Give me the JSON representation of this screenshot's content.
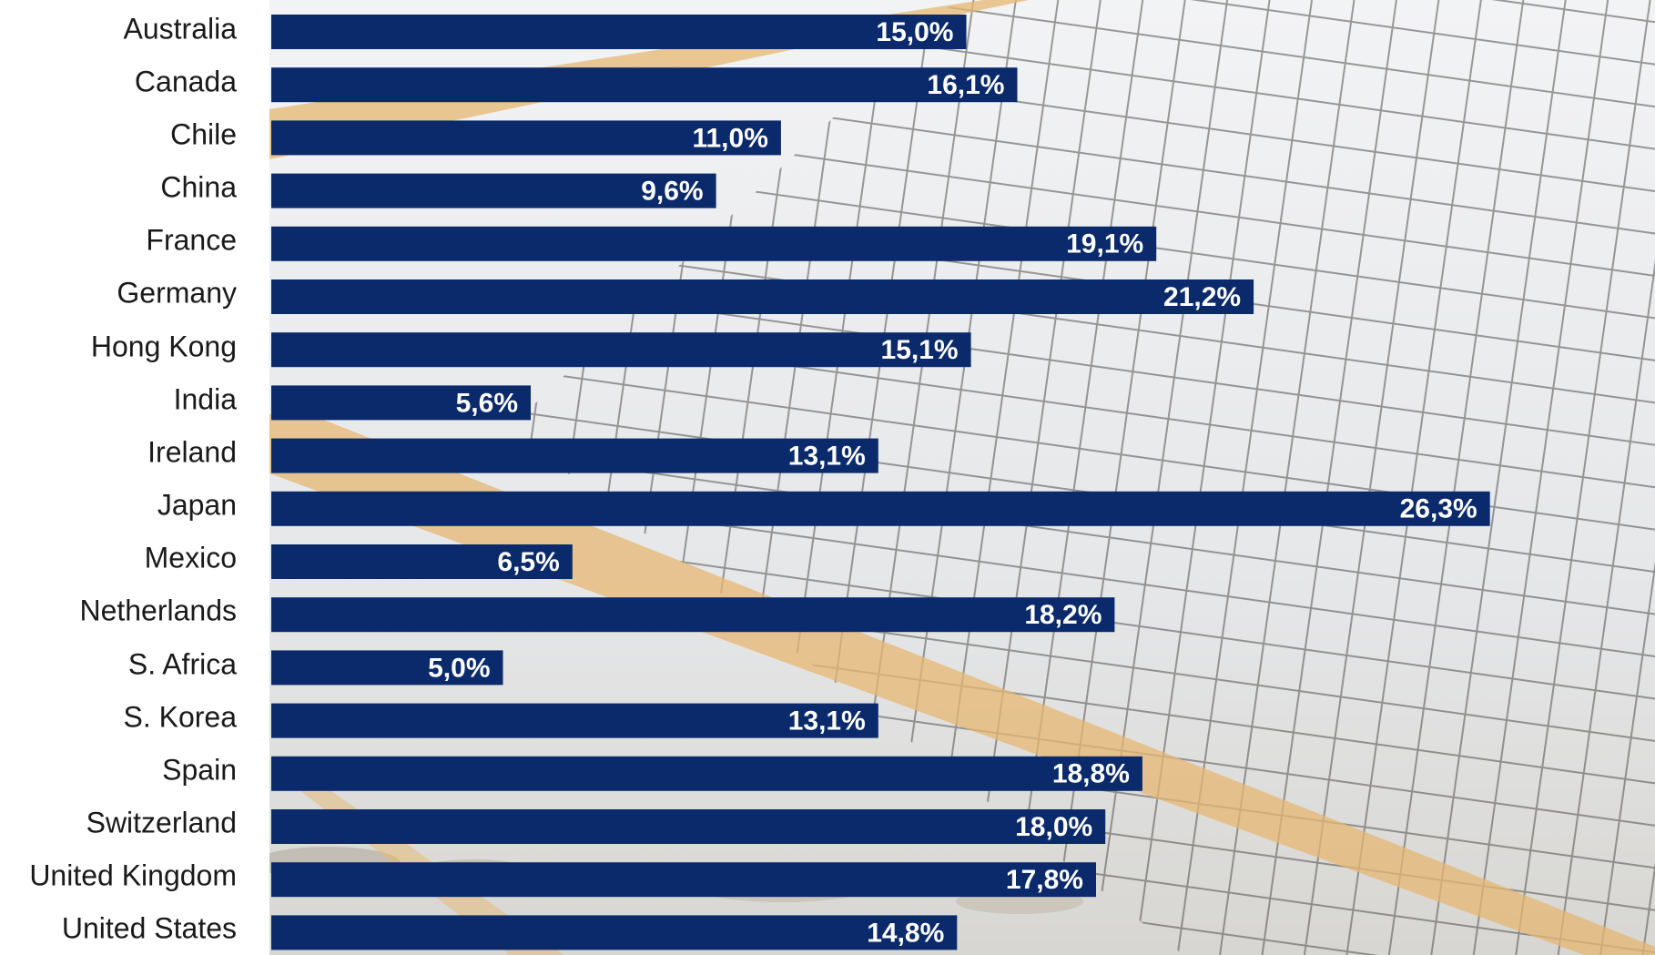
{
  "chart_data": {
    "type": "bar",
    "orientation": "horizontal",
    "categories": [
      "Australia",
      "Canada",
      "Chile",
      "China",
      "France",
      "Germany",
      "Hong Kong",
      "India",
      "Ireland",
      "Japan",
      "Mexico",
      "Netherlands",
      "S. Africa",
      "S. Korea",
      "Spain",
      "Switzerland",
      "United Kingdom",
      "United States"
    ],
    "values": [
      15.0,
      16.1,
      11.0,
      9.6,
      19.1,
      21.2,
      15.1,
      5.6,
      13.1,
      26.3,
      6.5,
      18.2,
      5.0,
      13.1,
      18.8,
      18.0,
      17.8,
      14.8
    ],
    "value_labels": [
      "15,0%",
      "16,1%",
      "11,0%",
      "9,6%",
      "19,1%",
      "21,2%",
      "15,1%",
      "5,6%",
      "13,1%",
      "26,3%",
      "6,5%",
      "18,2%",
      "5,0%",
      "13,1%",
      "18,8%",
      "18,0%",
      "17,8%",
      "14,8%"
    ],
    "title": "",
    "xlabel": "",
    "ylabel": "",
    "xlim": [
      0,
      30
    ],
    "grid": false,
    "legend": "none",
    "background_image": "volleyball-net-beach",
    "colors": {
      "bar": "#0a2a6b",
      "value_text": "#ffffff",
      "category_text": "#1a1a1a",
      "net_band": "#e5b771",
      "sky": "#e9eaec"
    }
  }
}
